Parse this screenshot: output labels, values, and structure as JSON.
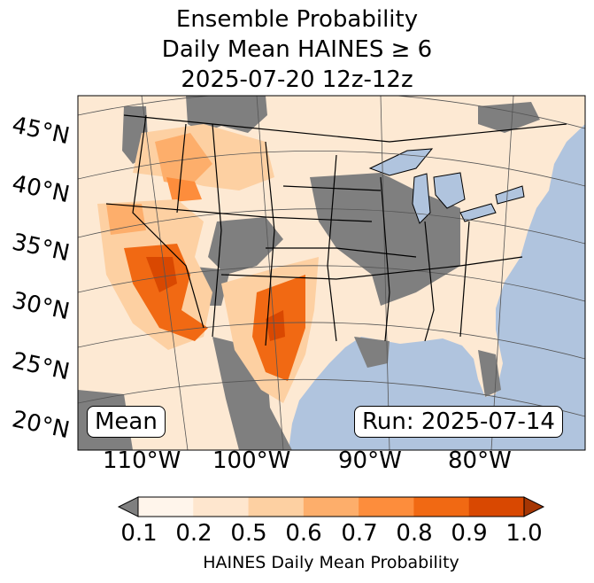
{
  "title": {
    "line1": "Ensemble Probability",
    "line2": "Daily Mean HAINES ≥ 6",
    "line3": "2025-07-20 12z-12z"
  },
  "map": {
    "lat_labels": [
      "45°N",
      "40°N",
      "35°N",
      "30°N",
      "25°N",
      "20°N"
    ],
    "lon_labels": [
      "110°W",
      "100°W",
      "90°W",
      "80°W"
    ],
    "left_box": "Mean",
    "right_box": "Run: 2025-07-14",
    "colors": {
      "ocean": "#b0c4de",
      "land": "#fefefe",
      "missing": "#7f7f7f",
      "grid": "#555555"
    }
  },
  "colorbar": {
    "ticks": [
      "0.1",
      "0.2",
      "0.5",
      "0.6",
      "0.7",
      "0.8",
      "0.9",
      "1.0"
    ],
    "colors": [
      "#fff5eb",
      "#fee6ce",
      "#fdd0a2",
      "#fdae6b",
      "#fd8d3c",
      "#f16913",
      "#d94801",
      "#a63603"
    ],
    "under_color": "#7f7f7f",
    "label": "HAINES Daily Mean Probability"
  }
}
